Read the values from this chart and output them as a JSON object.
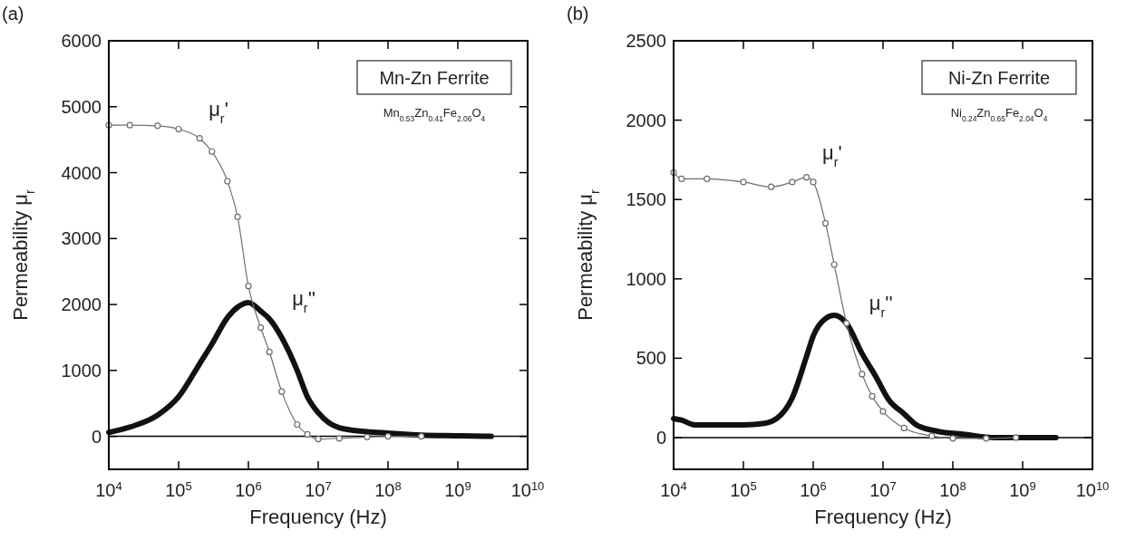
{
  "chart_data": [
    {
      "type": "line",
      "title": "Mn-Zn Ferrite",
      "subtitle": "Mn$_{0.53}$Zn$_{0.41}$Fe$_{2.06}$O$_{4}$",
      "xlabel": "Frequency (Hz)",
      "ylabel": "Permeability μ$_{r}$",
      "log": "x",
      "grid": false,
      "legend": false,
      "xlim": [
        10000,
        10000000000
      ],
      "xticks": [
        {
          "value": 10000,
          "label": "10$^{4}$"
        },
        {
          "value": 100000,
          "label": "10$^{5}$"
        },
        {
          "value": 1000000,
          "label": "10$^{6}$"
        },
        {
          "value": 10000000,
          "label": "10$^{7}$"
        },
        {
          "value": 100000000,
          "label": "10$^{8}$"
        },
        {
          "value": 1000000000,
          "label": "10$^{9}$"
        },
        {
          "value": 10000000000,
          "label": "10$^{10}$"
        }
      ],
      "ylim": [
        -500,
        6000
      ],
      "yticks": [
        0,
        1000,
        2000,
        3000,
        4000,
        5000,
        6000
      ],
      "ref_lines": [
        {
          "axis": "y",
          "value": 0,
          "color": "#000000"
        }
      ],
      "annotations": [
        "(a)"
      ],
      "series": [
        {
          "name": "μ$_{r}$'",
          "color": "#6e6e6e",
          "marker": "circle",
          "x": [
            10000,
            20000,
            50000,
            100000,
            200000,
            300000,
            500000,
            700000,
            1000000,
            1500000,
            2000000,
            3000000,
            5000000,
            7000000,
            10000000,
            20000000,
            50000000,
            100000000,
            300000000
          ],
          "values": [
            4720,
            4720,
            4710,
            4660,
            4520,
            4320,
            3870,
            3330,
            2280,
            1650,
            1280,
            680,
            180,
            30,
            -40,
            -30,
            -10,
            0,
            0
          ]
        },
        {
          "name": "μ$_{r}$''",
          "color": "#111111",
          "marker": "none",
          "x": [
            10000,
            20000,
            50000,
            100000,
            200000,
            300000,
            500000,
            700000,
            1000000,
            1500000,
            2000000,
            3000000,
            5000000,
            7000000,
            10000000,
            20000000,
            50000000,
            100000000,
            300000000,
            1000000000,
            3000000000
          ],
          "values": [
            60,
            140,
            320,
            600,
            1100,
            1400,
            1800,
            1960,
            2030,
            1900,
            1780,
            1500,
            1000,
            600,
            360,
            130,
            70,
            50,
            20,
            10,
            0
          ]
        }
      ]
    },
    {
      "type": "line",
      "title": "Ni-Zn Ferrite",
      "subtitle": "Ni$_{0.24}$Zn$_{0.65}$Fe$_{2.04}$O$_{4}$",
      "xlabel": "Frequency (Hz)",
      "ylabel": "Permeability μ$_{r}$",
      "log": "x",
      "grid": false,
      "legend": false,
      "xlim": [
        10000,
        10000000000
      ],
      "xticks": [
        {
          "value": 10000,
          "label": "10$^{4}$"
        },
        {
          "value": 100000,
          "label": "10$^{5}$"
        },
        {
          "value": 1000000,
          "label": "10$^{6}$"
        },
        {
          "value": 10000000,
          "label": "10$^{7}$"
        },
        {
          "value": 100000000,
          "label": "10$^{8}$"
        },
        {
          "value": 1000000000,
          "label": "10$^{9}$"
        },
        {
          "value": 10000000000,
          "label": "10$^{10}$"
        }
      ],
      "ylim": [
        -200,
        2500
      ],
      "yticks": [
        0,
        500,
        1000,
        1500,
        2000,
        2500
      ],
      "ref_lines": [
        {
          "axis": "y",
          "value": 0,
          "color": "#000000"
        }
      ],
      "annotations": [
        "(b)"
      ],
      "series": [
        {
          "name": "μ$_{r}$'",
          "color": "#6e6e6e",
          "marker": "circle",
          "x": [
            10000,
            13000,
            30000,
            100000,
            250000,
            500000,
            800000,
            1000000,
            1500000,
            2000000,
            3000000,
            5000000,
            7000000,
            10000000,
            20000000,
            50000000,
            100000000,
            300000000,
            800000000
          ],
          "values": [
            1670,
            1630,
            1630,
            1610,
            1580,
            1610,
            1640,
            1610,
            1350,
            1090,
            720,
            400,
            260,
            165,
            60,
            10,
            -5,
            -5,
            0
          ]
        },
        {
          "name": "μ$_{r}$''",
          "color": "#111111",
          "marker": "none",
          "x": [
            10000,
            13000,
            20000,
            100000,
            200000,
            300000,
            500000,
            800000,
            1000000,
            1500000,
            2000000,
            3000000,
            5000000,
            8000000,
            12000000,
            20000000,
            30000000,
            60000000,
            150000000,
            400000000,
            3000000000
          ],
          "values": [
            120,
            110,
            80,
            80,
            90,
            120,
            250,
            510,
            640,
            750,
            770,
            720,
            530,
            380,
            240,
            150,
            80,
            40,
            20,
            0,
            0
          ]
        }
      ]
    }
  ]
}
